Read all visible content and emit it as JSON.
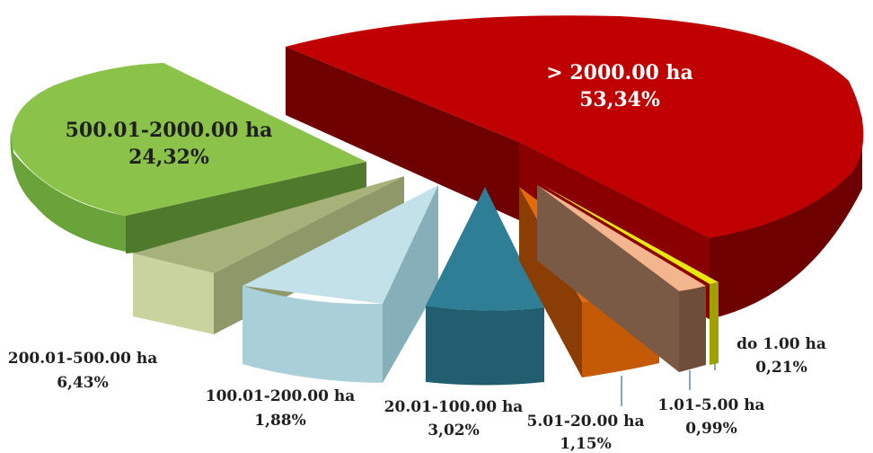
{
  "chart_data": {
    "type": "pie",
    "style": "3d-exploded",
    "unit": "%",
    "slices": [
      {
        "label": "> 2000.00 ha",
        "value_text": "53,34%",
        "value": 53.34,
        "color": "#c00000"
      },
      {
        "label": "500.01-2000.00 ha",
        "value_text": "24,32%",
        "value": 24.32,
        "color": "#8bc34a"
      },
      {
        "label": "200.01-500.00 ha",
        "value_text": "6,43%",
        "value": 6.43,
        "color": "#c5d19a"
      },
      {
        "label": "100.01-200.00 ha",
        "value_text": "1,88%",
        "value": 1.88,
        "color": "#add5de"
      },
      {
        "label": "20.01-100.00 ha",
        "value_text": "3,02%",
        "value": 3.02,
        "color": "#31849b"
      },
      {
        "label": "5.01-20.00 ha",
        "value_text": "1,15%",
        "value": 1.15,
        "color": "#e36c09"
      },
      {
        "label": "1.01-5.00 ha",
        "value_text": "0,99%",
        "value": 0.99,
        "color": "#f0b088"
      },
      {
        "label": "do 1.00 ha",
        "value_text": "0,21%",
        "value": 0.21,
        "color": "#d6d60a"
      }
    ]
  }
}
